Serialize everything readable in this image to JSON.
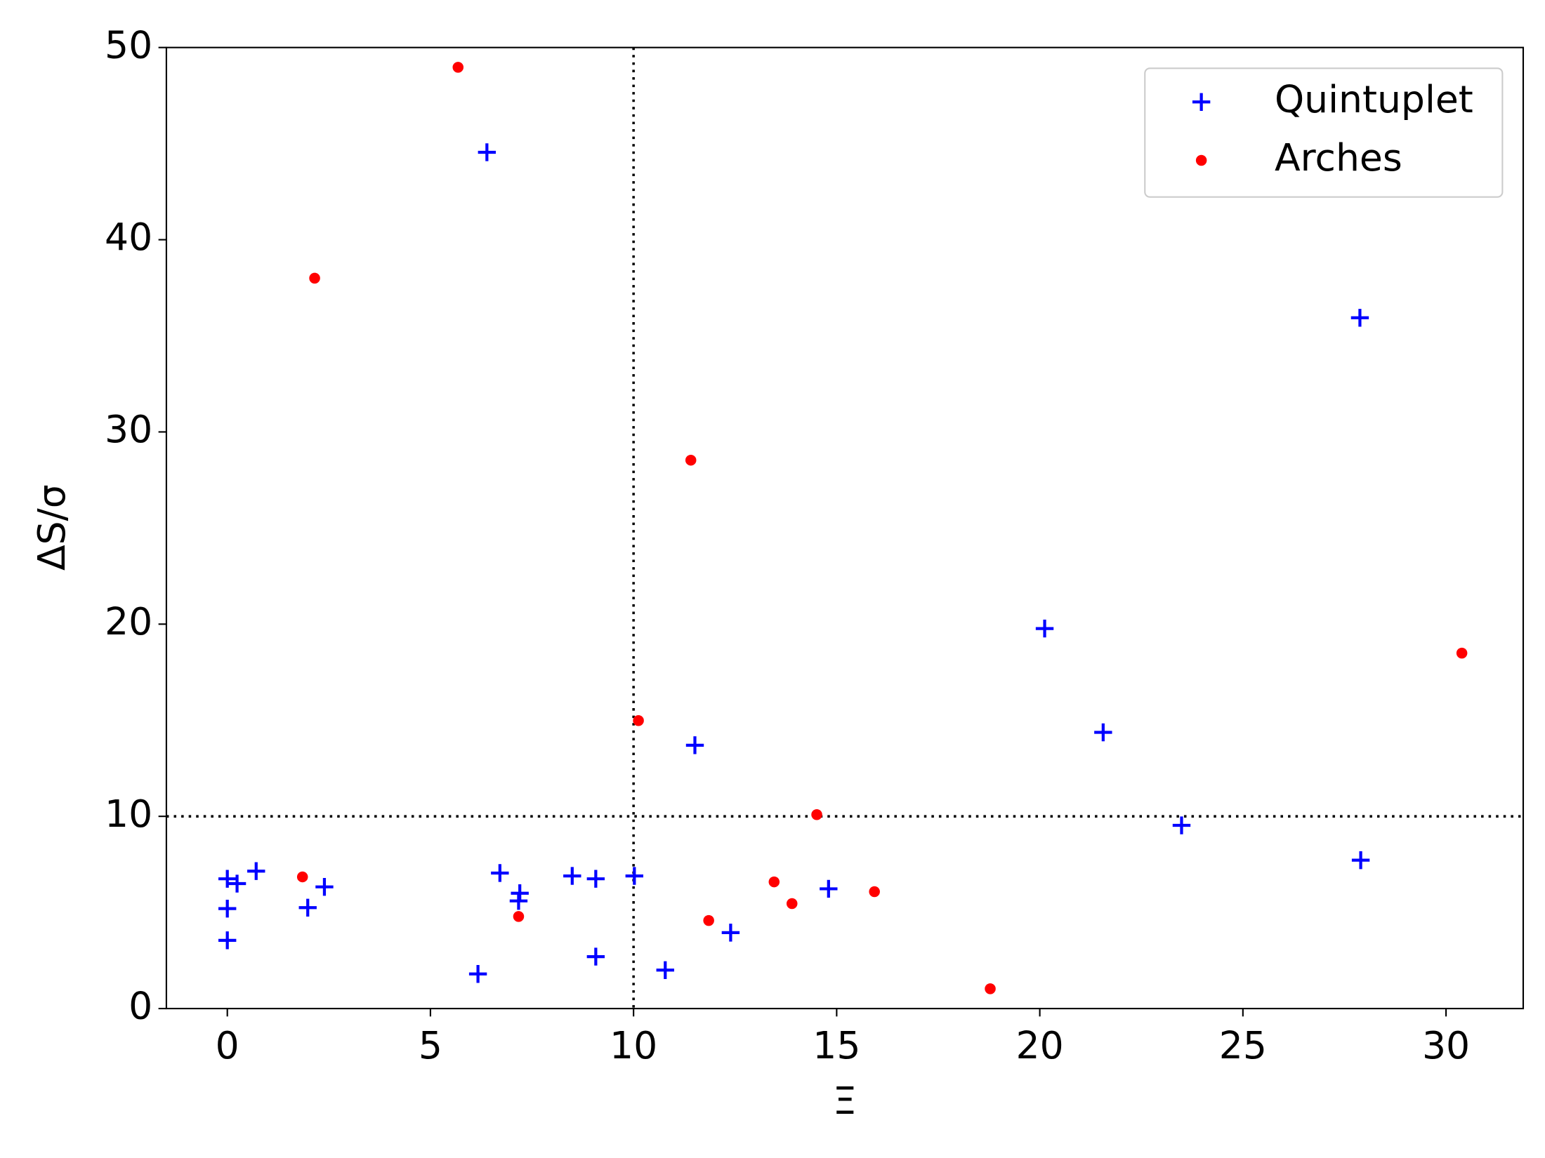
{
  "chart_data": {
    "type": "scatter",
    "xlabel": "Ξ",
    "ylabel": "ΔS/σ",
    "xlim": [
      -1.5,
      31.9
    ],
    "ylim": [
      0,
      50
    ],
    "xticks": [
      0,
      5,
      10,
      15,
      20,
      25,
      30
    ],
    "yticks": [
      0,
      10,
      20,
      30,
      40,
      50
    ],
    "vlines": [
      10
    ],
    "hlines": [
      10
    ],
    "legend": "upper right",
    "series": [
      {
        "name": "Quintuplet",
        "color": "#0000ff",
        "marker": "plus",
        "x": [
          0,
          0.24,
          0,
          0,
          0.71,
          1.98,
          2.39,
          6.39,
          6.17,
          6.71,
          7.2,
          7.17,
          8.49,
          9.07,
          9.07,
          10.02,
          10.78,
          11.51,
          12.39,
          14.8,
          20.12,
          21.56,
          23.49,
          27.88,
          27.9
        ],
        "values": [
          6.75,
          6.5,
          5.2,
          3.55,
          7.15,
          5.25,
          6.33,
          44.55,
          1.8,
          7.05,
          6.0,
          5.6,
          6.9,
          6.75,
          2.7,
          6.9,
          2.0,
          13.7,
          3.95,
          6.23,
          19.77,
          14.37,
          9.53,
          35.94,
          7.72
        ]
      },
      {
        "name": "Arches",
        "color": "#ff0000",
        "marker": "dot",
        "x": [
          5.68,
          2.15,
          1.85,
          7.17,
          11.41,
          10.12,
          14.51,
          11.85,
          13.46,
          13.9,
          15.93,
          18.78,
          30.39
        ],
        "values": [
          48.97,
          38.0,
          6.85,
          4.79,
          28.53,
          14.98,
          10.09,
          4.58,
          6.59,
          5.46,
          6.08,
          1.03,
          18.49
        ]
      }
    ]
  }
}
